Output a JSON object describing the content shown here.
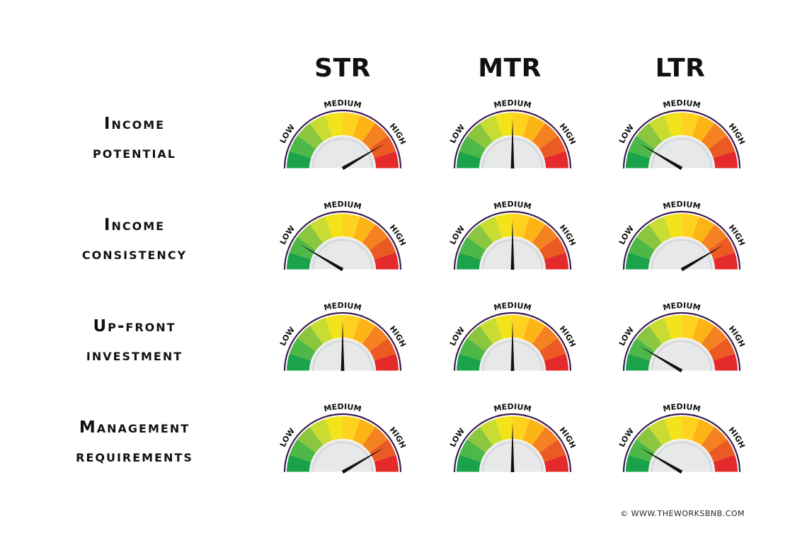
{
  "columns": [
    "STR",
    "MTR",
    "LTR"
  ],
  "rows": [
    {
      "label_line1": "Income",
      "label_line2": "potential",
      "levels": [
        0.83,
        0.5,
        0.17
      ]
    },
    {
      "label_line1": "Income",
      "label_line2": "consistency",
      "levels": [
        0.17,
        0.5,
        0.83
      ]
    },
    {
      "label_line1": "Up-front",
      "label_line2": "investment",
      "levels": [
        0.5,
        0.5,
        0.17
      ]
    },
    {
      "label_line1": "Management",
      "label_line2": "requirements",
      "levels": [
        0.83,
        0.5,
        0.17
      ]
    }
  ],
  "gauge_labels": {
    "low": "LOW",
    "medium": "MEDIUM",
    "high": "HIGH"
  },
  "gauge_colors": {
    "segments": [
      "#1aa34a",
      "#4db848",
      "#8cc63f",
      "#c8dc32",
      "#f3e31b",
      "#ffd21f",
      "#fdb515",
      "#f58220",
      "#ec5a24",
      "#e42a2a"
    ],
    "rim": "#3b1a4f",
    "face": "#e7e8ea",
    "needle": "#111111"
  },
  "footer": "© WWW.THEWORKSBNB.COM"
}
